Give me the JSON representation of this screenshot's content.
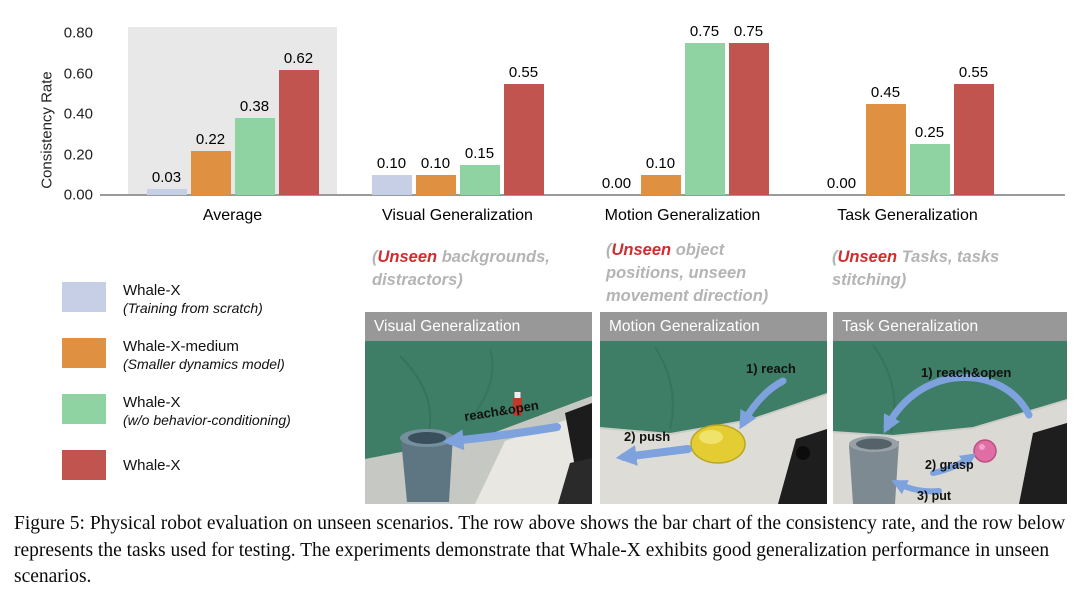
{
  "figure": {
    "caption": "Figure 5: Physical robot evaluation on unseen scenarios. The row above shows the bar chart of the consistency rate, and the row below represents the tasks used for testing. The experiments demonstrate that Whale-X exhibits good generalization performance in unseen scenarios."
  },
  "chart_data": {
    "type": "bar",
    "title": "",
    "ylabel": "Consistency Rate",
    "xlabel": "",
    "ylim": [
      0,
      0.8
    ],
    "yticks": [
      "0.80",
      "0.60",
      "0.40",
      "0.20",
      "0.00"
    ],
    "grid": false,
    "legend_position": "bottom-left",
    "highlighted_group": "Average",
    "categories": [
      "Average",
      "Visual Generalization",
      "Motion Generalization",
      "Task Generalization"
    ],
    "series": [
      {
        "name": "Whale-X (Training from scratch)",
        "color": "#c7cfe6",
        "values": [
          0.03,
          0.1,
          0.0,
          0.0
        ]
      },
      {
        "name": "Whale-X-medium (Smaller dynamics model)",
        "color": "#df9040",
        "values": [
          0.22,
          0.1,
          0.1,
          0.45
        ]
      },
      {
        "name": "Whale-X (w/o behavior-conditioning)",
        "color": "#8fd3a2",
        "values": [
          0.38,
          0.15,
          0.75,
          0.25
        ]
      },
      {
        "name": "Whale-X",
        "color": "#c25450",
        "values": [
          0.62,
          0.55,
          0.75,
          0.55
        ]
      }
    ]
  },
  "legend": [
    {
      "label": "Whale-X",
      "sub": "(Training from scratch)",
      "color": "#c7cfe6"
    },
    {
      "label": "Whale-X-medium",
      "sub": "(Smaller dynamics model)",
      "color": "#df9040"
    },
    {
      "label": "Whale-X",
      "sub": "(w/o behavior-conditioning)",
      "color": "#8fd3a2"
    },
    {
      "label": "Whale-X",
      "sub": "",
      "color": "#c25450"
    }
  ],
  "notes": [
    {
      "open": "(",
      "highlight": "Unseen",
      "rest": " backgrounds, distractors)"
    },
    {
      "open": "(",
      "highlight": "Unseen",
      "rest": " object positions, unseen movement direction)"
    },
    {
      "open": "(",
      "highlight": "Unseen",
      "rest": " Tasks, tasks stitching)"
    }
  ],
  "photos": [
    {
      "title": "Visual Generalization",
      "annotations": [
        "reach&open"
      ]
    },
    {
      "title": "Motion Generalization",
      "annotations": [
        "1) reach",
        "2) push"
      ]
    },
    {
      "title": "Task Generalization",
      "annotations": [
        "1) reach&open",
        "2) grasp",
        "3) put"
      ]
    }
  ]
}
